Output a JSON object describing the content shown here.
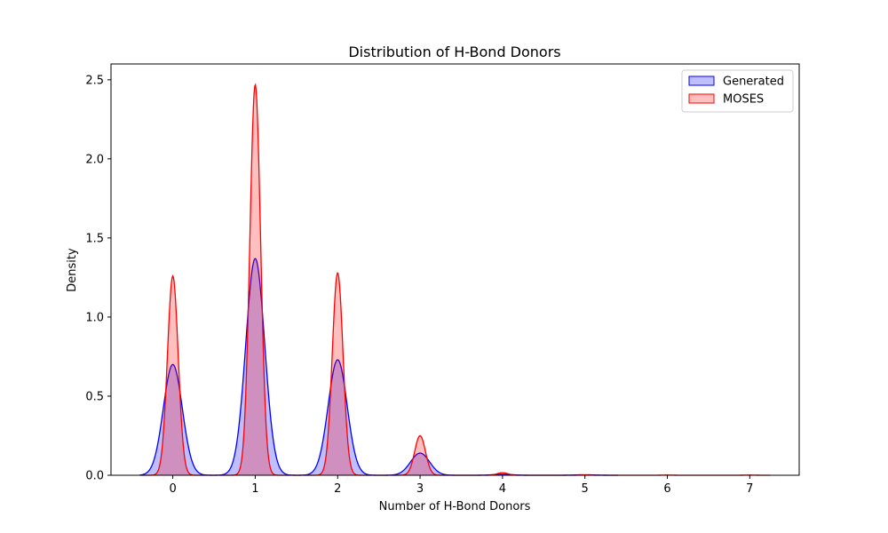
{
  "chart_data": {
    "type": "area",
    "title": "Distribution of H-Bond Donors",
    "xlabel": "Number of H-Bond Donors",
    "ylabel": "Density",
    "xlim": [
      -0.75,
      7.6
    ],
    "ylim": [
      0,
      2.6
    ],
    "xticks": [
      0,
      1,
      2,
      3,
      4,
      5,
      6,
      7
    ],
    "yticks": [
      0.0,
      0.5,
      1.0,
      1.5,
      2.0,
      2.5
    ],
    "xtick_labels": [
      "0",
      "1",
      "2",
      "3",
      "4",
      "5",
      "6",
      "7"
    ],
    "ytick_labels": [
      "0.0",
      "0.5",
      "1.0",
      "1.5",
      "2.0",
      "2.5"
    ],
    "grid": false,
    "legend_position": "top-right",
    "series": [
      {
        "name": "Generated",
        "color": "#0000ff",
        "fill": "#0000ff",
        "x_range": [
          -0.4,
          5.4
        ],
        "peaks": [
          {
            "x": 0,
            "y": 0.7,
            "sigma": 0.115
          },
          {
            "x": 1,
            "y": 1.37,
            "sigma": 0.115
          },
          {
            "x": 2,
            "y": 0.73,
            "sigma": 0.115
          },
          {
            "x": 3,
            "y": 0.14,
            "sigma": 0.115
          },
          {
            "x": 4,
            "y": 0.006,
            "sigma": 0.115
          },
          {
            "x": 5,
            "y": 0.003,
            "sigma": 0.115
          }
        ]
      },
      {
        "name": "MOSES",
        "color": "#ff0000",
        "fill": "#ff0000",
        "x_range": [
          -0.4,
          7.25
        ],
        "peaks": [
          {
            "x": 0,
            "y": 1.26,
            "sigma": 0.065
          },
          {
            "x": 1,
            "y": 2.47,
            "sigma": 0.065
          },
          {
            "x": 2,
            "y": 1.28,
            "sigma": 0.065
          },
          {
            "x": 3,
            "y": 0.25,
            "sigma": 0.065
          },
          {
            "x": 4,
            "y": 0.016,
            "sigma": 0.065
          },
          {
            "x": 5,
            "y": 0.002,
            "sigma": 0.065
          },
          {
            "x": 6,
            "y": 0.001,
            "sigma": 0.065
          },
          {
            "x": 7,
            "y": 0.001,
            "sigma": 0.065
          }
        ]
      }
    ]
  }
}
